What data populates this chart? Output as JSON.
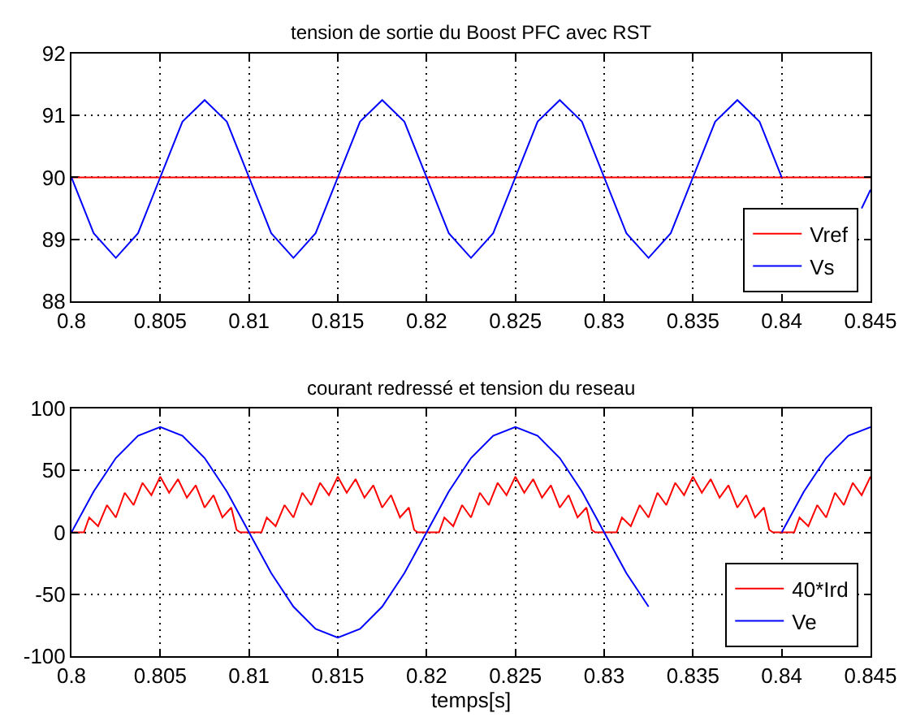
{
  "chart_data": [
    {
      "type": "line",
      "title": "tension de sortie du Boost PFC avec RST",
      "xlim": [
        0.8,
        0.845
      ],
      "xticks": [
        0.8,
        0.805,
        0.81,
        0.815,
        0.82,
        0.825,
        0.83,
        0.835,
        0.84,
        0.845
      ],
      "ylim": [
        88,
        92
      ],
      "yticks": [
        88,
        89,
        90,
        91,
        92
      ],
      "grid": true,
      "legend": "bottom right",
      "series": [
        {
          "name": "Vref",
          "color": "#ff0000",
          "x": [
            0.8,
            0.845
          ],
          "values": [
            90,
            90
          ]
        },
        {
          "name": "Vs",
          "color": "#0000ff",
          "x": [
            0.8,
            0.80125,
            0.8025,
            0.80375,
            0.805,
            0.80625,
            0.8075,
            0.80875,
            0.81,
            0.81125,
            0.8125,
            0.81375,
            0.815,
            0.81625,
            0.8175,
            0.81875,
            0.82,
            0.82125,
            0.8225,
            0.82375,
            0.825,
            0.82625,
            0.8275,
            0.82875,
            0.83,
            0.83125,
            0.8325,
            0.83375,
            0.835,
            0.83625,
            0.8375,
            0.83875,
            0.84,
            0.84125,
            0.8425,
            0.84375,
            0.8445,
            0.845
          ],
          "values": [
            90,
            89.1,
            88.7,
            89.1,
            90,
            90.9,
            91.25,
            90.9,
            90,
            89.1,
            88.7,
            89.1,
            90,
            90.9,
            91.25,
            90.9,
            90,
            89.1,
            88.7,
            89.1,
            90,
            90.9,
            91.25,
            90.9,
            90,
            89.1,
            88.7,
            89.1,
            90,
            90.9,
            91.25,
            90.9,
            90,
            null,
            null,
            null,
            89.5,
            89.8
          ]
        }
      ]
    },
    {
      "type": "line",
      "title": "courant redressé et tension du reseau",
      "xlabel": "temps[s]",
      "xlim": [
        0.8,
        0.845
      ],
      "xticks": [
        0.8,
        0.805,
        0.81,
        0.815,
        0.82,
        0.825,
        0.83,
        0.835,
        0.84,
        0.845
      ],
      "ylim": [
        -100,
        100
      ],
      "yticks": [
        -100,
        -50,
        0,
        50,
        100
      ],
      "grid": true,
      "legend": "bottom right",
      "series": [
        {
          "name": "40*Ird",
          "color": "#ff0000",
          "x": [
            0.8,
            0.8007,
            0.801,
            0.8015,
            0.802,
            0.8025,
            0.803,
            0.8035,
            0.804,
            0.8045,
            0.805,
            0.8055,
            0.806,
            0.8065,
            0.807,
            0.8075,
            0.808,
            0.8085,
            0.809,
            0.8093,
            0.8095,
            0.8107,
            0.811,
            0.8115,
            0.812,
            0.8125,
            0.813,
            0.8135,
            0.814,
            0.8145,
            0.815,
            0.8155,
            0.816,
            0.8165,
            0.817,
            0.8175,
            0.818,
            0.8185,
            0.819,
            0.8193,
            0.8195,
            0.8207,
            0.821,
            0.8215,
            0.822,
            0.8225,
            0.823,
            0.8235,
            0.824,
            0.8245,
            0.825,
            0.8255,
            0.826,
            0.8265,
            0.827,
            0.8275,
            0.828,
            0.8285,
            0.829,
            0.8293,
            0.8295,
            0.8307,
            0.831,
            0.8315,
            0.832,
            0.8325,
            0.833,
            0.8335,
            0.834,
            0.8345,
            0.835,
            0.8355,
            0.836,
            0.8365,
            0.837,
            0.8375,
            0.838,
            0.8385,
            0.839,
            0.8393,
            0.8395,
            0.8407,
            0.841,
            0.8415,
            0.842,
            0.8425,
            0.843,
            0.8435,
            0.844,
            0.8445,
            0.845
          ],
          "values": [
            0,
            0,
            12,
            5,
            22,
            12,
            32,
            22,
            40,
            30,
            45,
            32,
            43,
            28,
            38,
            20,
            30,
            12,
            20,
            2,
            0,
            0,
            12,
            5,
            22,
            12,
            32,
            22,
            40,
            30,
            45,
            32,
            43,
            28,
            38,
            20,
            30,
            12,
            20,
            2,
            0,
            0,
            12,
            5,
            22,
            12,
            32,
            22,
            40,
            30,
            45,
            32,
            43,
            28,
            38,
            20,
            30,
            12,
            20,
            2,
            0,
            0,
            12,
            5,
            22,
            12,
            32,
            22,
            40,
            30,
            45,
            32,
            43,
            28,
            38,
            20,
            30,
            12,
            20,
            2,
            0,
            0,
            12,
            5,
            22,
            12,
            32,
            22,
            40,
            30,
            45
          ]
        },
        {
          "name": "Ve",
          "color": "#0000ff",
          "x": [
            0.8,
            0.80125,
            0.8025,
            0.80375,
            0.805,
            0.80625,
            0.8075,
            0.80875,
            0.81,
            0.81125,
            0.8125,
            0.81375,
            0.815,
            0.81625,
            0.8175,
            0.81875,
            0.82,
            0.82125,
            0.8225,
            0.82375,
            0.825,
            0.82625,
            0.8275,
            0.82875,
            0.83,
            0.83125,
            0.8325,
            0.83375,
            0.835,
            0.83625,
            0.8375,
            0.83875,
            0.84,
            0.84125,
            0.8425,
            0.84375,
            0.845
          ],
          "values": [
            0,
            33,
            60,
            78,
            85,
            78,
            60,
            33,
            0,
            -33,
            -60,
            -78,
            -85,
            -78,
            -60,
            -33,
            0,
            33,
            60,
            78,
            85,
            78,
            60,
            33,
            0,
            -33,
            -60,
            null,
            null,
            null,
            null,
            null,
            0,
            33,
            60,
            78,
            85
          ]
        }
      ]
    }
  ]
}
